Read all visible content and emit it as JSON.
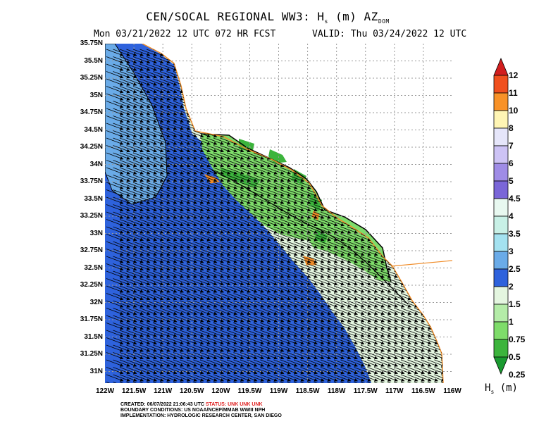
{
  "header": {
    "title_prefix": "CEN/SOCAL REGIONAL WW3: H",
    "title_sub1": "s",
    "title_mid": " (m) AZ",
    "title_sub2": "DOM",
    "forecast_line": "Mon 03/21/2022 12 UTC 072 HR FCST",
    "valid_line": "VALID: Thu 03/24/2022 12 UTC"
  },
  "map": {
    "lat_labels": [
      "35.75N",
      "35.5N",
      "35.25N",
      "35N",
      "34.75N",
      "34.5N",
      "34.25N",
      "34N",
      "33.75N",
      "33.5N",
      "33.25N",
      "33N",
      "32.75N",
      "32.5N",
      "32.25N",
      "32N",
      "31.75N",
      "31.5N",
      "31.25N",
      "31N"
    ],
    "lon_labels": [
      "122W",
      "121.5W",
      "121W",
      "120.5W",
      "120W",
      "119.5W",
      "119W",
      "118.5W",
      "118W",
      "117.5W",
      "117W",
      "116.5W",
      "116W"
    ],
    "wave_direction": "southeast",
    "wave_height_regions": [
      {
        "range": "1.5-2",
        "color": "#2e62dc",
        "area": "open ocean"
      },
      {
        "range": "2-2.5",
        "color": "#6aabe8",
        "area": "northwest offshore"
      },
      {
        "range": "1-1.5",
        "color": "#e4f6e0",
        "area": "nearshore"
      },
      {
        "range": "0.5-1",
        "color": "#7edc6a",
        "area": "Southern California Bight"
      },
      {
        "range": "0.25-0.5",
        "color": "#3cb43c",
        "area": "island lee"
      }
    ],
    "colors": {
      "land": "#ffffff",
      "coastline": "#f08c28",
      "grid": "#999999",
      "contour": "#000000"
    }
  },
  "colorbar": {
    "levels": [
      "12",
      "11",
      "10",
      "8",
      "7",
      "6",
      "5",
      "4.5",
      "4",
      "3.5",
      "3",
      "2.5",
      "2",
      "1.5",
      "1",
      "0.75",
      "0.5",
      "0.25"
    ],
    "colors": [
      "#d21e1e",
      "#f0501e",
      "#f89228",
      "#fff5b4",
      "#e6e6fa",
      "#cdc3f5",
      "#9f8ce6",
      "#7a66d8",
      "#e8f8f0",
      "#c8f0e6",
      "#a4e2f0",
      "#6aabe8",
      "#2e62dc",
      "#e4f6e0",
      "#b4eca8",
      "#7edc6a",
      "#3cb43c",
      "#1a9a30"
    ],
    "units_prefix": "H",
    "units_sub": "s",
    "units_suffix": " (m)"
  },
  "footer": {
    "created_label": "CREATED: 06/07/2022 21:06:43 UTC",
    "status_label": "STATUS: UNK UNK UNK",
    "boundary_label": "BOUNDARY CONDITIONS: US NOAA/NCEP/MMAB WWIII NPH",
    "implementation_label": "IMPLEMENTATION: HYDROLOGIC RESEARCH CENTER, SAN DIEGO"
  }
}
